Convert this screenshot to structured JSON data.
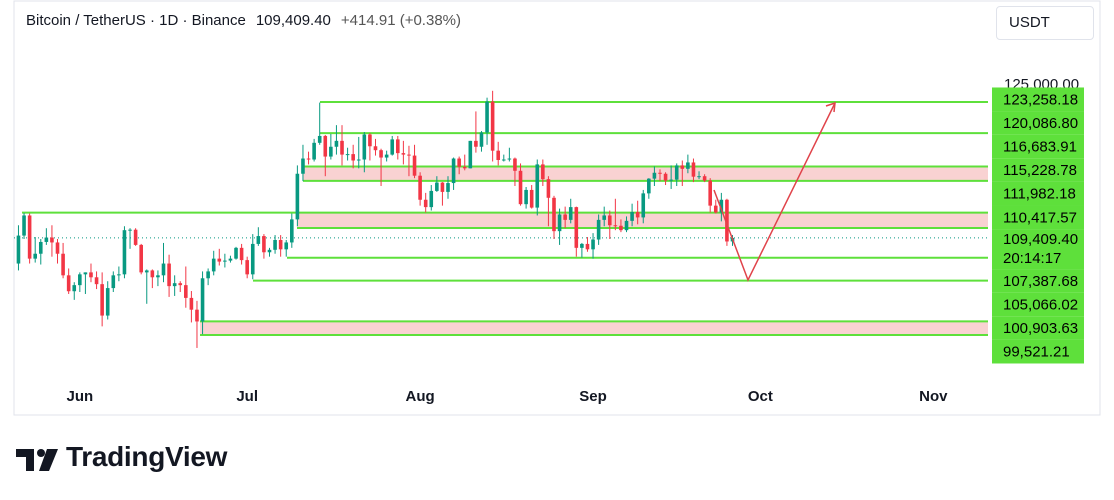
{
  "chart_data": {
    "type": "candlestick",
    "symbol": "Bitcoin / TetherUS · 1D · Binance",
    "last_price": {
      "value": 109409.4,
      "label": "109,409.40"
    },
    "change": "+414.91 (+0.38%)",
    "currency": "USDT",
    "countdown": "20:14:17",
    "brand": "TradingView",
    "up_color": "#089981",
    "down_color": "#f23645",
    "level_color": "#5ee03b",
    "zone_color": "#f9d2d2",
    "xlim": [
      -0.8,
      173.8
    ],
    "xticks": [
      {
        "value": 11,
        "label": "Jun"
      },
      {
        "value": 41,
        "label": "Jul"
      },
      {
        "value": 72,
        "label": "Aug"
      },
      {
        "value": 103,
        "label": "Sep"
      },
      {
        "value": 133,
        "label": "Oct"
      },
      {
        "value": 164,
        "label": "Nov"
      }
    ],
    "ylim": [
      94426,
      129576
    ],
    "yticks": [
      {
        "value": 125000,
        "label": "125,000.00"
      }
    ],
    "levels": [
      {
        "value": 123258.18,
        "label": "123,258.18"
      },
      {
        "value": 120086.8,
        "label": "120,086.80"
      },
      {
        "value": 116683.91,
        "label": "116,683.91"
      },
      {
        "value": 115228.78,
        "label": "115,228.78"
      },
      {
        "value": 111982.18,
        "label": "111,982.18"
      },
      {
        "value": 110417.57,
        "label": "110,417.57"
      },
      {
        "value": 107387.68,
        "label": "107,387.68"
      },
      {
        "value": 105066.02,
        "label": "105,066.02"
      },
      {
        "value": 100903.63,
        "label": "100,903.63"
      },
      {
        "value": 99521.21,
        "label": "99,521.21"
      }
    ],
    "candles": [
      [
        106800,
        110700,
        106100,
        109650
      ],
      [
        109650,
        111950,
        109300,
        111700
      ],
      [
        111700,
        111900,
        106800,
        107300
      ],
      [
        107300,
        109500,
        106900,
        107800
      ],
      [
        107800,
        109300,
        106700,
        109000
      ],
      [
        109000,
        110400,
        108700,
        109450
      ],
      [
        109450,
        110700,
        107500,
        108950
      ],
      [
        108950,
        109300,
        106800,
        107800
      ],
      [
        107800,
        108900,
        105300,
        105600
      ],
      [
        105600,
        106300,
        103700,
        103980
      ],
      [
        103980,
        104900,
        103100,
        104600
      ],
      [
        104600,
        105900,
        103900,
        105700
      ],
      [
        105700,
        105900,
        103700,
        105900
      ],
      [
        105900,
        106800,
        104900,
        105400
      ],
      [
        105400,
        106000,
        104200,
        104700
      ],
      [
        104700,
        105900,
        100400,
        101500
      ],
      [
        101500,
        105000,
        101100,
        104300
      ],
      [
        104300,
        106000,
        103900,
        105600
      ],
      [
        105600,
        106500,
        105000,
        105700
      ],
      [
        105700,
        110600,
        105300,
        110200
      ],
      [
        110200,
        110400,
        108300,
        110250
      ],
      [
        110250,
        110400,
        108600,
        108700
      ],
      [
        108700,
        108800,
        105700,
        105900
      ],
      [
        105900,
        106200,
        102700,
        106100
      ],
      [
        106100,
        106200,
        104300,
        105400
      ],
      [
        105400,
        106100,
        104500,
        105600
      ],
      [
        105600,
        108900,
        104900,
        106800
      ],
      [
        106800,
        107700,
        103400,
        104500
      ],
      [
        104500,
        105600,
        103500,
        104800
      ],
      [
        104800,
        105000,
        103900,
        104600
      ],
      [
        104600,
        106500,
        102300,
        103300
      ],
      [
        103300,
        104000,
        100800,
        102100
      ],
      [
        102100,
        103000,
        98200,
        100900
      ],
      [
        100900,
        106000,
        99600,
        105300
      ],
      [
        105300,
        106300,
        104600,
        106000
      ],
      [
        106000,
        108100,
        105600,
        107300
      ],
      [
        107300,
        108300,
        106600,
        107000
      ],
      [
        107000,
        107800,
        106400,
        107100
      ],
      [
        107100,
        107600,
        106900,
        107300
      ],
      [
        107300,
        108500,
        107200,
        108400
      ],
      [
        108400,
        108800,
        106700,
        107150
      ],
      [
        107150,
        107500,
        105300,
        105700
      ],
      [
        105700,
        109800,
        105200,
        108800
      ],
      [
        108800,
        110500,
        108600,
        109600
      ],
      [
        109600,
        109800,
        107300,
        107950
      ],
      [
        107950,
        108400,
        107500,
        108200
      ],
      [
        108200,
        109700,
        107800,
        109200
      ],
      [
        109200,
        109700,
        107500,
        108250
      ],
      [
        108250,
        109200,
        107500,
        108950
      ],
      [
        108950,
        111900,
        108400,
        111300
      ],
      [
        111300,
        116800,
        110600,
        115950
      ],
      [
        115950,
        118900,
        115200,
        117500
      ],
      [
        117500,
        118200,
        116900,
        117400
      ],
      [
        117400,
        119500,
        117200,
        119100
      ],
      [
        119100,
        123200,
        118900,
        119800
      ],
      [
        119800,
        119900,
        115700,
        117700
      ],
      [
        117700,
        120000,
        117400,
        118700
      ],
      [
        118700,
        120900,
        117900,
        119300
      ],
      [
        119300,
        120900,
        116800,
        117900
      ],
      [
        117900,
        118600,
        117300,
        117950
      ],
      [
        117950,
        118900,
        116500,
        117300
      ],
      [
        117300,
        119700,
        116500,
        117400
      ],
      [
        117400,
        120200,
        116100,
        119950
      ],
      [
        119950,
        120100,
        117300,
        118750
      ],
      [
        118750,
        119500,
        117800,
        118350
      ],
      [
        118350,
        118500,
        114700,
        117600
      ],
      [
        117600,
        118300,
        117200,
        117900
      ],
      [
        117900,
        119800,
        117800,
        119450
      ],
      [
        119450,
        119800,
        117400,
        118050
      ],
      [
        118050,
        119300,
        116900,
        117900
      ],
      [
        117900,
        118800,
        115700,
        117800
      ],
      [
        117800,
        118900,
        115500,
        115750
      ],
      [
        115750,
        116100,
        112700,
        113300
      ],
      [
        113300,
        114000,
        112000,
        112550
      ],
      [
        112550,
        114800,
        112200,
        114200
      ],
      [
        114200,
        115700,
        114100,
        115050
      ],
      [
        115050,
        115100,
        112700,
        114100
      ],
      [
        114100,
        115700,
        113400,
        115000
      ],
      [
        115000,
        117600,
        114300,
        117500
      ],
      [
        117500,
        117700,
        115900,
        116650
      ],
      [
        116650,
        117900,
        116300,
        116500
      ],
      [
        116500,
        119300,
        116500,
        119300
      ],
      [
        119300,
        122300,
        118100,
        118700
      ],
      [
        118700,
        120300,
        118200,
        120150
      ],
      [
        120150,
        123700,
        118900,
        123300
      ],
      [
        123300,
        124400,
        117200,
        118300
      ],
      [
        118300,
        119200,
        116800,
        117350
      ],
      [
        117350,
        117900,
        117200,
        117400
      ],
      [
        117400,
        118600,
        117200,
        117500
      ],
      [
        117500,
        117600,
        114700,
        116250
      ],
      [
        116250,
        117000,
        112700,
        112850
      ],
      [
        112850,
        114600,
        112400,
        114300
      ],
      [
        114300,
        114800,
        112400,
        112500
      ],
      [
        112500,
        117400,
        111700,
        116900
      ],
      [
        116900,
        117400,
        114700,
        115400
      ],
      [
        115400,
        115700,
        110600,
        113500
      ],
      [
        113500,
        113700,
        109300,
        110100
      ],
      [
        110100,
        112400,
        108700,
        111800
      ],
      [
        111800,
        112600,
        110400,
        111250
      ],
      [
        111250,
        113400,
        110900,
        112550
      ],
      [
        112550,
        112600,
        107500,
        108400
      ],
      [
        108400,
        108900,
        107400,
        108800
      ],
      [
        108800,
        109500,
        108000,
        108250
      ],
      [
        108250,
        109900,
        107300,
        109250
      ],
      [
        109250,
        111800,
        108700,
        111250
      ],
      [
        111250,
        112600,
        110600,
        111700
      ],
      [
        111700,
        112200,
        109300,
        110700
      ],
      [
        110700,
        113400,
        110200,
        110650
      ],
      [
        110650,
        111300,
        110000,
        110200
      ],
      [
        110200,
        111600,
        110000,
        111150
      ],
      [
        111150,
        112900,
        110600,
        112050
      ],
      [
        112050,
        113200,
        110800,
        111500
      ],
      [
        111500,
        114300,
        110900,
        113950
      ],
      [
        113950,
        115500,
        113400,
        115450
      ],
      [
        115450,
        116700,
        114700,
        116050
      ],
      [
        116050,
        116400,
        115200,
        115950
      ],
      [
        115950,
        116100,
        114800,
        115250
      ],
      [
        115250,
        116800,
        114400,
        115350
      ],
      [
        115350,
        117000,
        114700,
        116800
      ],
      [
        116800,
        117300,
        114700,
        116450
      ],
      [
        116450,
        117900,
        116000,
        117100
      ],
      [
        117100,
        117500,
        115100,
        115650
      ],
      [
        115650,
        116200,
        115400,
        115700
      ],
      [
        115700,
        115900,
        115100,
        115250
      ],
      [
        115250,
        115500,
        112000,
        112700
      ],
      [
        112700,
        113300,
        111900,
        112000
      ],
      [
        112000,
        114000,
        111100,
        113300
      ],
      [
        113300,
        113400,
        108600,
        109050
      ],
      [
        109050,
        109700,
        108600,
        109409.4
      ]
    ]
  }
}
